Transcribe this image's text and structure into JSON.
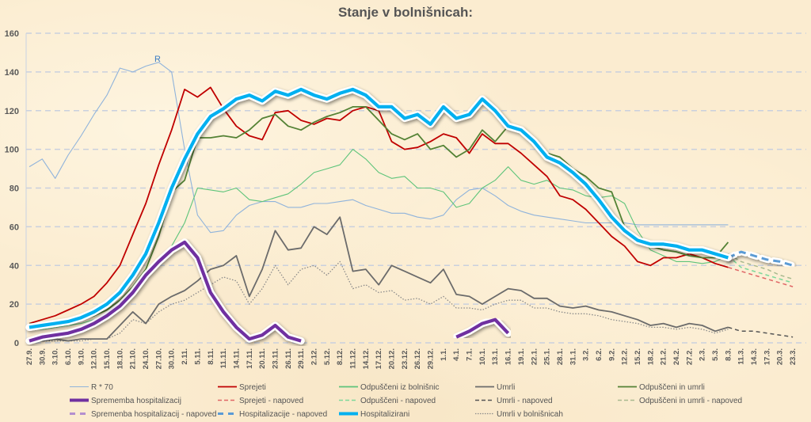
{
  "chart_data": {
    "type": "line",
    "title": "Stanje v bolnišnicah:",
    "xlabel": "",
    "ylabel": "",
    "ylim": [
      0,
      160
    ],
    "yticks": [
      0,
      20,
      40,
      60,
      80,
      100,
      120,
      140,
      160
    ],
    "grid": "horizontal-dashed",
    "legend_position": "bottom",
    "annotations": [
      {
        "text": "R",
        "series": "R * 70",
        "x": "27.10."
      }
    ],
    "categories": [
      "27.9.",
      "30.9.",
      "3.10.",
      "6.10.",
      "9.10.",
      "12.10.",
      "15.10.",
      "18.10.",
      "21.10.",
      "24.10.",
      "27.10.",
      "30.10.",
      "2.11.",
      "5.11.",
      "8.11.",
      "11.11.",
      "14.11.",
      "17.11.",
      "20.11.",
      "23.11.",
      "26.11.",
      "29.11.",
      "2.12.",
      "5.12.",
      "8.12.",
      "11.12.",
      "14.12.",
      "17.12.",
      "20.12.",
      "23.12.",
      "26.12.",
      "29.12.",
      "1.1.",
      "4.1.",
      "7.1.",
      "10.1.",
      "13.1.",
      "16.1.",
      "19.1.",
      "22.1.",
      "25.1.",
      "28.1.",
      "31.1.",
      "3.2.",
      "6.2.",
      "9.2.",
      "12.2.",
      "15.2.",
      "18.2.",
      "21.2.",
      "24.2.",
      "27.2.",
      "2.3.",
      "5.3.",
      "8.3.",
      "11.3.",
      "14.3.",
      "17.3.",
      "20.3.",
      "23.3."
    ],
    "series": [
      {
        "name": "R * 70",
        "color": "#8fb3db",
        "style": "solid-thin",
        "values": [
          91,
          95,
          85,
          97,
          107,
          118,
          128,
          142,
          140,
          143,
          145,
          140,
          100,
          66,
          57,
          58,
          66,
          71,
          73,
          73,
          70,
          70,
          72,
          72,
          73,
          74,
          71,
          69,
          67,
          67,
          65,
          64,
          66,
          74,
          79,
          80,
          76,
          71,
          68,
          66,
          65,
          64,
          63,
          62,
          62,
          62,
          62,
          61,
          61,
          61,
          61,
          61,
          61,
          61,
          61,
          null,
          null,
          null,
          null,
          null
        ]
      },
      {
        "name": "Sprejeti",
        "color": "#c00000",
        "style": "solid",
        "values": [
          10,
          12,
          14,
          17,
          20,
          24,
          31,
          40,
          56,
          72,
          92,
          110,
          131,
          127,
          132,
          121,
          112,
          107,
          105,
          119,
          120,
          115,
          113,
          116,
          115,
          120,
          122,
          120,
          104,
          100,
          101,
          104,
          108,
          106,
          98,
          108,
          103,
          103,
          98,
          92,
          86,
          76,
          74,
          69,
          62,
          55,
          50,
          42,
          40,
          44,
          44,
          46,
          44,
          41,
          39,
          null,
          null,
          null,
          null,
          null
        ]
      },
      {
        "name": "Odpuščeni iz bolnišnic",
        "color": "#5ec47a",
        "style": "solid-thin",
        "values": [
          7,
          7,
          8,
          9,
          10,
          12,
          15,
          19,
          25,
          33,
          42,
          50,
          62,
          80,
          79,
          78,
          80,
          74,
          73,
          75,
          77,
          82,
          88,
          90,
          92,
          100,
          95,
          88,
          85,
          86,
          80,
          80,
          78,
          70,
          72,
          80,
          84,
          91,
          84,
          82,
          84,
          80,
          79,
          76,
          75,
          76,
          72,
          58,
          48,
          45,
          42,
          42,
          41,
          42,
          45,
          null,
          null,
          null,
          null,
          null
        ]
      },
      {
        "name": "Umrli",
        "color": "#6b6b6b",
        "style": "solid",
        "values": [
          2,
          1,
          2,
          1,
          2,
          2,
          2,
          9,
          16,
          10,
          20,
          24,
          27,
          32,
          38,
          40,
          45,
          24,
          38,
          58,
          48,
          49,
          60,
          56,
          65,
          37,
          38,
          30,
          40,
          37,
          34,
          31,
          38,
          25,
          24,
          20,
          24,
          28,
          27,
          23,
          23,
          19,
          18,
          19,
          17,
          16,
          14,
          12,
          9,
          10,
          8,
          10,
          9,
          6,
          8,
          null,
          null,
          null,
          null,
          null
        ]
      },
      {
        "name": "Odpuščeni in umrli",
        "color": "#548235",
        "style": "solid",
        "values": [
          10,
          9,
          9,
          10,
          12,
          14,
          17,
          22,
          29,
          38,
          55,
          78,
          84,
          106,
          106,
          107,
          106,
          110,
          116,
          118,
          112,
          110,
          114,
          117,
          119,
          122,
          122,
          115,
          108,
          105,
          108,
          100,
          102,
          96,
          100,
          110,
          104,
          112,
          110,
          105,
          98,
          96,
          90,
          86,
          80,
          78,
          60,
          52,
          50,
          48,
          47,
          45,
          44,
          44,
          52,
          null,
          null,
          null,
          null,
          null
        ]
      },
      {
        "name": "Umrli v bolnišnicah",
        "color": "#8a8a8a",
        "style": "dotted",
        "values": [
          1,
          1,
          1,
          1,
          1,
          2,
          2,
          5,
          12,
          10,
          16,
          20,
          22,
          26,
          30,
          34,
          32,
          20,
          28,
          40,
          30,
          38,
          40,
          35,
          42,
          28,
          30,
          26,
          27,
          22,
          23,
          20,
          24,
          18,
          18,
          17,
          20,
          22,
          22,
          18,
          18,
          16,
          15,
          15,
          14,
          12,
          11,
          10,
          8,
          8,
          7,
          8,
          7,
          5,
          7,
          null,
          null,
          null,
          null,
          null
        ]
      },
      {
        "name": "Hospitalizirani",
        "color": "#00b0f0",
        "style": "solid-thick",
        "values": [
          8,
          9,
          10,
          11,
          13,
          16,
          20,
          26,
          35,
          46,
          62,
          80,
          95,
          108,
          117,
          121,
          126,
          128,
          125,
          130,
          128,
          131,
          128,
          126,
          129,
          131,
          128,
          122,
          122,
          116,
          118,
          113,
          122,
          116,
          118,
          126,
          120,
          112,
          110,
          104,
          96,
          93,
          88,
          82,
          74,
          65,
          58,
          53,
          51,
          51,
          50,
          48,
          48,
          46,
          44,
          null,
          null,
          null,
          null,
          null
        ]
      },
      {
        "name": "Sprememba hospitalizacij",
        "color": "#7030a0",
        "style": "solid-thick",
        "values": [
          1,
          3,
          4,
          5,
          7,
          10,
          14,
          19,
          26,
          35,
          42,
          48,
          52,
          44,
          26,
          16,
          8,
          2,
          4,
          9,
          3,
          1,
          null,
          null,
          2,
          null,
          null,
          null,
          null,
          null,
          null,
          null,
          null,
          3,
          6,
          10,
          12,
          5,
          null,
          null,
          null,
          null,
          null,
          null,
          null,
          null,
          null,
          null,
          null,
          null,
          null,
          null,
          null,
          null,
          null,
          null,
          null,
          null,
          null,
          null
        ]
      },
      {
        "name": "Sprejeti - napoved",
        "color": "#e06666",
        "style": "dashed",
        "values": [
          null,
          null,
          null,
          null,
          null,
          null,
          null,
          null,
          null,
          null,
          null,
          null,
          null,
          null,
          null,
          null,
          null,
          null,
          null,
          null,
          null,
          null,
          null,
          null,
          null,
          null,
          null,
          null,
          null,
          null,
          null,
          null,
          null,
          null,
          null,
          null,
          null,
          null,
          null,
          null,
          null,
          null,
          null,
          null,
          null,
          null,
          null,
          null,
          null,
          null,
          null,
          null,
          null,
          null,
          39,
          37,
          35,
          33,
          31,
          29
        ]
      },
      {
        "name": "Odpuščeni - napoved",
        "color": "#7dd89a",
        "style": "dashed",
        "values": [
          null,
          null,
          null,
          null,
          null,
          null,
          null,
          null,
          null,
          null,
          null,
          null,
          null,
          null,
          null,
          null,
          null,
          null,
          null,
          null,
          null,
          null,
          null,
          null,
          null,
          null,
          null,
          null,
          null,
          null,
          null,
          null,
          null,
          null,
          null,
          null,
          null,
          null,
          null,
          null,
          null,
          null,
          null,
          null,
          null,
          null,
          null,
          null,
          null,
          null,
          null,
          null,
          null,
          null,
          45,
          39,
          37,
          35,
          33,
          31
        ]
      },
      {
        "name": "Umrli - napoved",
        "color": "#555555",
        "style": "dashed",
        "values": [
          null,
          null,
          null,
          null,
          null,
          null,
          null,
          null,
          null,
          null,
          null,
          null,
          null,
          null,
          null,
          null,
          null,
          null,
          null,
          null,
          null,
          null,
          null,
          null,
          null,
          null,
          null,
          null,
          null,
          null,
          null,
          null,
          null,
          null,
          null,
          null,
          null,
          null,
          null,
          null,
          null,
          null,
          null,
          null,
          null,
          null,
          null,
          null,
          null,
          null,
          null,
          null,
          null,
          null,
          8,
          6,
          6,
          5,
          4,
          3
        ]
      },
      {
        "name": "Odpuščeni in umrli - napoved",
        "color": "#a9b98f",
        "style": "dashed",
        "values": [
          null,
          null,
          null,
          null,
          null,
          null,
          null,
          null,
          null,
          null,
          null,
          null,
          null,
          null,
          null,
          null,
          null,
          null,
          null,
          null,
          null,
          null,
          null,
          null,
          null,
          null,
          null,
          null,
          null,
          null,
          null,
          null,
          null,
          null,
          null,
          null,
          null,
          null,
          null,
          null,
          null,
          null,
          null,
          null,
          null,
          null,
          null,
          null,
          null,
          null,
          null,
          null,
          null,
          null,
          46,
          42,
          40,
          38,
          35,
          33
        ]
      },
      {
        "name": "Spremenba hospitalizacij - napoved",
        "color": "#b48fcf",
        "style": "dashed-thick",
        "values": []
      },
      {
        "name": "Hospitalizacije - napoved",
        "color": "#5b9bd5",
        "style": "dashed-thick",
        "values": [
          null,
          null,
          null,
          null,
          null,
          null,
          null,
          null,
          null,
          null,
          null,
          null,
          null,
          null,
          null,
          null,
          null,
          null,
          null,
          null,
          null,
          null,
          null,
          null,
          null,
          null,
          null,
          null,
          null,
          null,
          null,
          null,
          null,
          null,
          null,
          null,
          null,
          null,
          null,
          null,
          null,
          null,
          null,
          null,
          null,
          null,
          null,
          null,
          null,
          null,
          null,
          null,
          null,
          null,
          44,
          47,
          45,
          43,
          42,
          40
        ]
      }
    ],
    "legend": [
      {
        "label": "R * 70",
        "color": "#8fb3db",
        "style": "solid-thin"
      },
      {
        "label": "Sprejeti",
        "color": "#c00000",
        "style": "solid"
      },
      {
        "label": "Odpuščeni iz bolnišnic",
        "color": "#5ec47a",
        "style": "solid"
      },
      {
        "label": "Umrli",
        "color": "#6b6b6b",
        "style": "solid"
      },
      {
        "label": "Odpuščeni in umrli",
        "color": "#548235",
        "style": "solid"
      },
      {
        "label": "Sprememba hospitalizacij",
        "color": "#7030a0",
        "style": "solid-thick"
      },
      {
        "label": "Sprejeti - napoved",
        "color": "#e06666",
        "style": "dashed"
      },
      {
        "label": "Odpuščeni - napoved",
        "color": "#7dd89a",
        "style": "dashed"
      },
      {
        "label": "Umrli - napoved",
        "color": "#555555",
        "style": "dashed"
      },
      {
        "label": "Odpuščeni in umrli - napoved",
        "color": "#a9b98f",
        "style": "dashed"
      },
      {
        "label": "Spremenba hospitalizacij - napoved",
        "color": "#b48fcf",
        "style": "dashed-thick"
      },
      {
        "label": "Hospitalizacije - napoved",
        "color": "#5b9bd5",
        "style": "dashed-thick"
      },
      {
        "label": "Hospitalizirani",
        "color": "#00b0f0",
        "style": "solid-thick"
      },
      {
        "label": "Umrli v bolnišnicah",
        "color": "#8a8a8a",
        "style": "dotted"
      }
    ]
  }
}
